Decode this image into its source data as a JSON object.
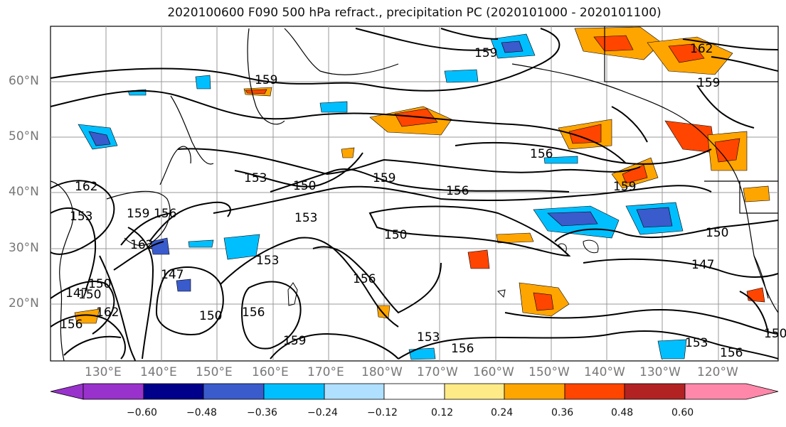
{
  "title": "2020100600 F090 500 hPa refract., precipitation PC (2020101000 - 2020101100)",
  "lat_labels": [
    "60°N",
    "50°N",
    "40°N",
    "30°N",
    "20°N"
  ],
  "lon_labels": [
    "130°E",
    "140°E",
    "150°E",
    "160°E",
    "170°E",
    "180°W",
    "170°W",
    "160°W",
    "150°W",
    "140°W",
    "130°W",
    "120°W"
  ],
  "contour_labels": [
    "159",
    "162",
    "159",
    "156",
    "153",
    "150",
    "159",
    "156",
    "159",
    "150",
    "153",
    "150",
    "162",
    "153",
    "159",
    "156",
    "159",
    "162",
    "153",
    "147",
    "156",
    "150",
    "147",
    "150",
    "162",
    "156",
    "159",
    "153",
    "156",
    "153",
    "156",
    "150",
    "147",
    "150",
    "156"
  ],
  "colorbar": {
    "ticks": [
      "−0.60",
      "−0.48",
      "−0.36",
      "−0.24",
      "−0.12",
      "0.12",
      "0.24",
      "0.36",
      "0.48",
      "0.60"
    ],
    "colors": [
      "#9932cc",
      "#00008b",
      "#3a5bcc",
      "#00bfff",
      "#b0e0ff",
      "#ffffff",
      "#ffea88",
      "#ffa500",
      "#ff4500",
      "#b22222",
      "#ff88aa"
    ]
  }
}
